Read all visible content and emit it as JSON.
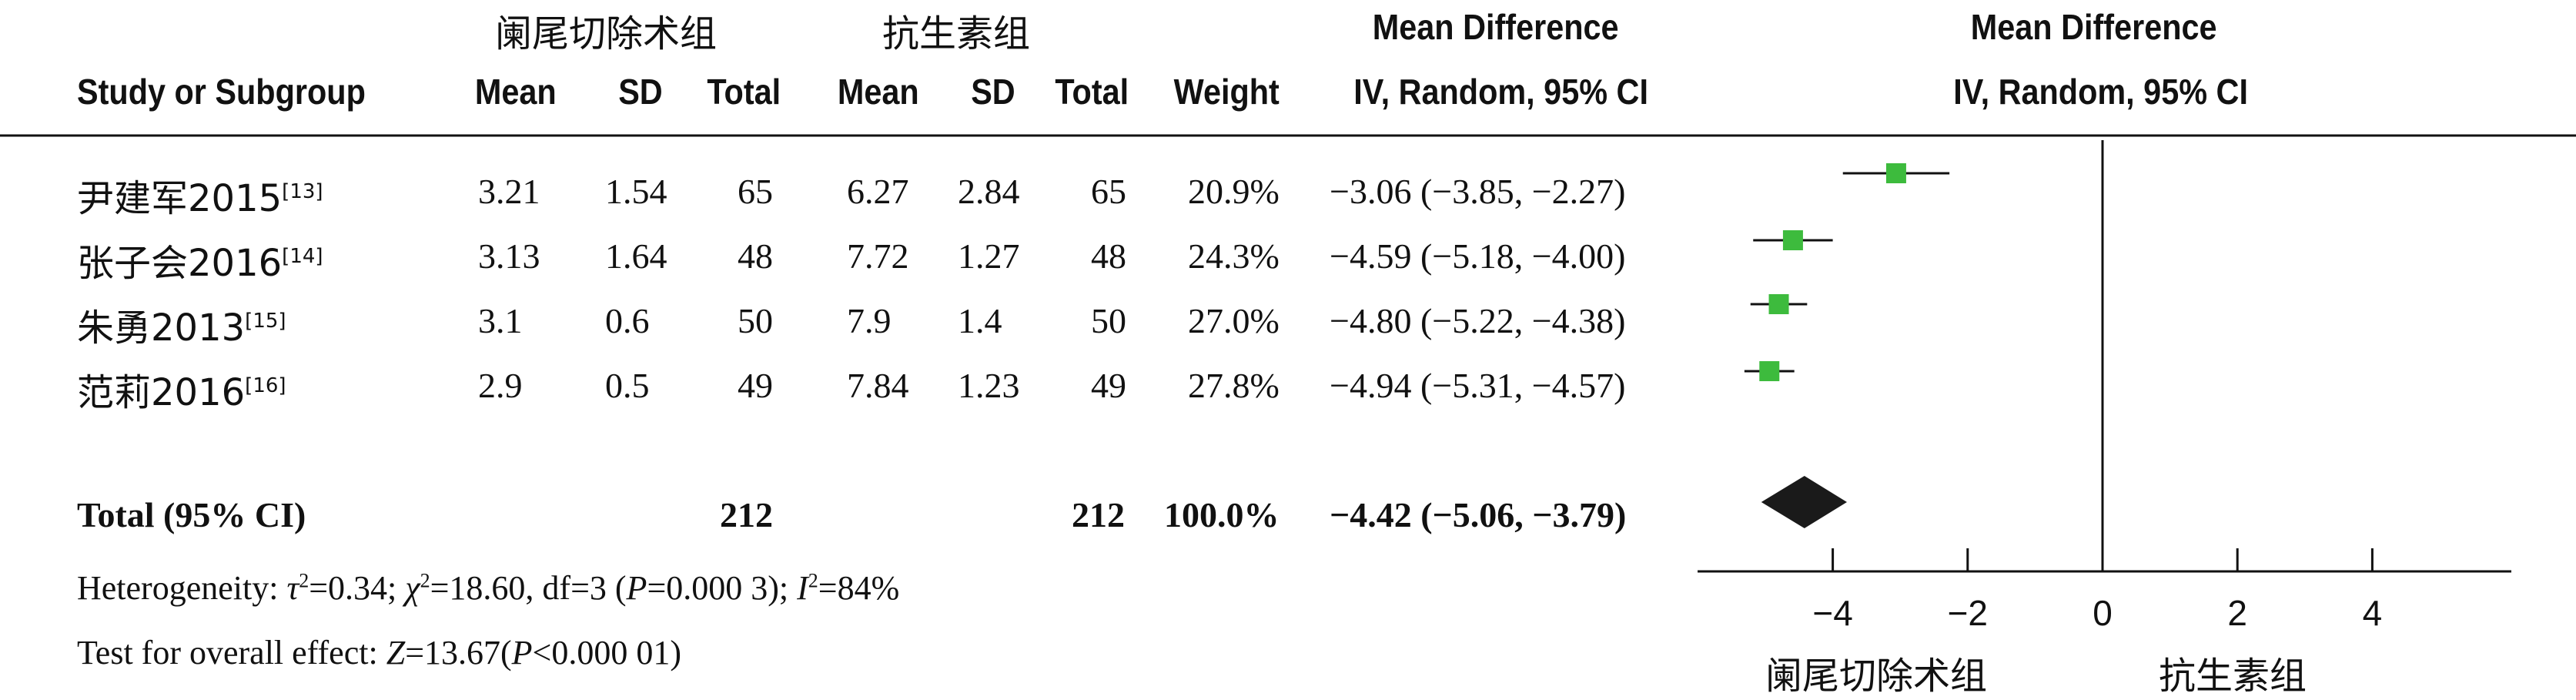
{
  "group_labels": {
    "experimental": "阑尾切除术组",
    "control": "抗生素组"
  },
  "headers": {
    "study": "Study or Subgroup",
    "mean": "Mean",
    "sd": "SD",
    "total": "Total",
    "weight": "Weight",
    "md_top": "Mean Difference",
    "md_bottom": "IV, Random, 95% CI",
    "plot_top": "Mean Difference",
    "plot_bottom": "IV, Random, 95% CI"
  },
  "studies": [
    {
      "name": "尹建军2015",
      "ref": "[13]",
      "exp_mean": "3.21",
      "exp_sd": "1.54",
      "exp_total": "65",
      "ctl_mean": "6.27",
      "ctl_sd": "2.84",
      "ctl_total": "65",
      "weight": "20.9%",
      "md_text": "−3.06 (−3.85, −2.27)"
    },
    {
      "name": "张子会2016",
      "ref": "[14]",
      "exp_mean": "3.13",
      "exp_sd": "1.64",
      "exp_total": "48",
      "ctl_mean": "7.72",
      "ctl_sd": "1.27",
      "ctl_total": "48",
      "weight": "24.3%",
      "md_text": "−4.59 (−5.18, −4.00)"
    },
    {
      "name": "朱勇2013",
      "ref": "[15]",
      "exp_mean": "3.1",
      "exp_sd": "0.6",
      "exp_total": "50",
      "ctl_mean": "7.9",
      "ctl_sd": "1.4",
      "ctl_total": "50",
      "weight": "27.0%",
      "md_text": "−4.80 (−5.22, −4.38)"
    },
    {
      "name": "范莉2016",
      "ref": "[16]",
      "exp_mean": "2.9",
      "exp_sd": "0.5",
      "exp_total": "49",
      "ctl_mean": "7.84",
      "ctl_sd": "1.23",
      "ctl_total": "49",
      "weight": "27.8%",
      "md_text": "−4.94 (−5.31, −4.57)"
    }
  ],
  "total_row": {
    "label": "Total (95% CI)",
    "exp_total": "212",
    "ctl_total": "212",
    "weight": "100.0%",
    "md_text": "−4.42 (−5.06, −3.79)"
  },
  "heterogeneity": {
    "prefix": "Heterogeneity: ",
    "tau_sym": "τ",
    "tau_val": "=0.34; ",
    "chi_sym": "χ",
    "chi_val": "=18.60, df=3 (",
    "p_sym": "P",
    "p_val": "=0.000 3); ",
    "i_sym": "I",
    "i_val": "=84%",
    "sup": "2"
  },
  "overall_effect": {
    "prefix": "Test for overall effect: ",
    "z_sym": "Z",
    "z_val": "=13.67(",
    "p_sym": "P",
    "p_val": "<0.000 01)"
  },
  "chart_data": {
    "type": "forest",
    "x_ticks": [
      -4,
      -2,
      0,
      2,
      4
    ],
    "x_tick_labels": [
      "−4",
      "−2",
      "0",
      "2",
      "4"
    ],
    "xlim": [
      -5.6,
      6.2
    ],
    "studies": [
      {
        "md": -3.06,
        "lo": -3.85,
        "hi": -2.27
      },
      {
        "md": -4.59,
        "lo": -5.18,
        "hi": -4.0
      },
      {
        "md": -4.8,
        "lo": -5.22,
        "hi": -4.38
      },
      {
        "md": -4.94,
        "lo": -5.31,
        "hi": -4.57
      }
    ],
    "pooled": {
      "md": -4.42,
      "lo": -5.06,
      "hi": -3.79
    },
    "x_axis_left_label": "阑尾切除术组",
    "x_axis_right_label": "抗生素组",
    "colors": {
      "square": "#3dbb3d",
      "diamond": "#1a1a1a",
      "line": "#111111"
    }
  }
}
